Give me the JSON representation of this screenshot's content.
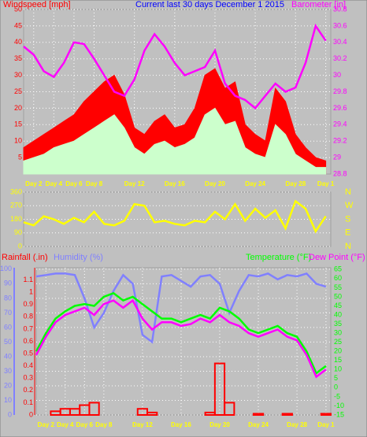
{
  "chart_data": [
    {
      "type": "line",
      "title": "Current last 30 days December 1 2015",
      "y_label": "Windspeed [mph]",
      "x": [
        1,
        2,
        3,
        4,
        5,
        6,
        7,
        8,
        9,
        10,
        11,
        12,
        13,
        14,
        15,
        16,
        17,
        18,
        19,
        20,
        21,
        22,
        23,
        24,
        25,
        26,
        27,
        28,
        29,
        30,
        31
      ],
      "xlim": [
        1,
        31.5
      ],
      "xticks": [
        {
          "value": 2,
          "label": "Day 2"
        },
        {
          "value": 4,
          "label": "Day 4"
        },
        {
          "value": 6,
          "label": "Day 6"
        },
        {
          "value": 8,
          "label": "Day 8"
        },
        {
          "value": 12,
          "label": "Day 12"
        },
        {
          "value": 16,
          "label": "Day 16"
        },
        {
          "value": 20,
          "label": "Day 20"
        },
        {
          "value": 24,
          "label": "Day 24"
        },
        {
          "value": 28,
          "label": "Day 28"
        },
        {
          "value": 31,
          "label": "Day 1"
        }
      ],
      "ylim": [
        0,
        50
      ],
      "yticks": [
        5,
        10,
        15,
        20,
        25,
        30,
        35,
        40,
        45,
        50
      ],
      "y2lim": [
        28.8,
        30.8
      ],
      "y2ticks": [
        28.8,
        29,
        29.2,
        29.4,
        29.6,
        29.8,
        30,
        30.2,
        30.4,
        30.6,
        30.8
      ],
      "grid": true,
      "series": [
        {
          "color": "#ff0000",
          "style": "area",
          "values": [
            8,
            10,
            12,
            14,
            16,
            18,
            22,
            25,
            28,
            30,
            24,
            14,
            12,
            16,
            18,
            14,
            15,
            20,
            30,
            32,
            26,
            28,
            15,
            12,
            10,
            26,
            22,
            12,
            8,
            5,
            4
          ]
        },
        {
          "color": "#ccffcc",
          "style": "area",
          "values": [
            4,
            5,
            6,
            8,
            9,
            10,
            12,
            14,
            16,
            18,
            14,
            8,
            6,
            9,
            10,
            8,
            9,
            11,
            18,
            20,
            15,
            16,
            8,
            6,
            5,
            15,
            12,
            6,
            4,
            2,
            2
          ]
        },
        {
          "name": "Barometer [in]",
          "color": "#ff00ff",
          "axis": "y2",
          "values": [
            30.35,
            30.25,
            30.05,
            29.98,
            30.15,
            30.4,
            30.38,
            30.2,
            30.0,
            29.8,
            29.75,
            29.95,
            30.3,
            30.5,
            30.35,
            30.15,
            30.0,
            30.05,
            30.1,
            30.3,
            29.9,
            29.75,
            29.7,
            29.6,
            29.75,
            29.9,
            29.8,
            29.85,
            30.15,
            30.6,
            30.42
          ]
        }
      ]
    },
    {
      "type": "line",
      "x": [
        1,
        2,
        3,
        4,
        5,
        6,
        7,
        8,
        9,
        10,
        11,
        12,
        13,
        14,
        15,
        16,
        17,
        18,
        19,
        20,
        21,
        22,
        23,
        24,
        25,
        26,
        27,
        28,
        29,
        30,
        31
      ],
      "xlim": [
        1,
        31.5
      ],
      "ylim": [
        0,
        360
      ],
      "yticks": [
        0,
        90,
        180,
        270,
        360
      ],
      "y2lim": [
        0,
        360
      ],
      "y2ticks": [
        {
          "value": 360,
          "label": "N"
        },
        {
          "value": 270,
          "label": "W"
        },
        {
          "value": 180,
          "label": "S"
        },
        {
          "value": 90,
          "label": "E"
        },
        {
          "value": 0,
          "label": "N"
        }
      ],
      "grid": true,
      "series": [
        {
          "color": "#ffff00",
          "values": [
            160,
            140,
            200,
            180,
            150,
            190,
            160,
            230,
            150,
            140,
            170,
            280,
            270,
            160,
            170,
            150,
            140,
            170,
            160,
            230,
            180,
            280,
            170,
            250,
            190,
            240,
            120,
            300,
            250,
            100,
            200
          ]
        }
      ]
    },
    {
      "type": "line",
      "x": [
        1,
        2,
        3,
        4,
        5,
        6,
        7,
        8,
        9,
        10,
        11,
        12,
        13,
        14,
        15,
        16,
        17,
        18,
        19,
        20,
        21,
        22,
        23,
        24,
        25,
        26,
        27,
        28,
        29,
        30,
        31
      ],
      "xlim": [
        1,
        31.5
      ],
      "xticks": [
        {
          "value": 2,
          "label": "Day 2"
        },
        {
          "value": 4,
          "label": "Day 4"
        },
        {
          "value": 6,
          "label": "Day 6"
        },
        {
          "value": 8,
          "label": "Day 8"
        },
        {
          "value": 12,
          "label": "Day 12"
        },
        {
          "value": 16,
          "label": "Day 16"
        },
        {
          "value": 20,
          "label": "Day 20"
        },
        {
          "value": 24,
          "label": "Day 24"
        },
        {
          "value": 28,
          "label": "Day 28"
        },
        {
          "value": 31,
          "label": "Day 1"
        }
      ],
      "ylim": [
        0,
        101
      ],
      "yticks": [
        0,
        10,
        20,
        30,
        40,
        50,
        60,
        70,
        80,
        90,
        100
      ],
      "y2lim": [
        -15,
        66
      ],
      "y2ticks": [
        -15,
        -10,
        -5,
        0,
        5,
        10,
        15,
        20,
        25,
        30,
        35,
        40,
        45,
        50,
        55,
        60,
        65
      ],
      "y3lim": [
        0,
        1.2
      ],
      "y3ticks": [
        0,
        0.1,
        0.2,
        0.3,
        0.4,
        0.5,
        0.6,
        0.7,
        0.8,
        0.9,
        1,
        1.1
      ],
      "grid": true,
      "series": [
        {
          "name": "Humidity (%)",
          "color": "#8080ff",
          "values": [
            95,
            96,
            97,
            97,
            96,
            80,
            60,
            70,
            85,
            96,
            90,
            55,
            50,
            95,
            96,
            92,
            88,
            95,
            96,
            90,
            70,
            85,
            96,
            95,
            97,
            93,
            96,
            95,
            97,
            90,
            88
          ]
        },
        {
          "name": "Temperature (°F)",
          "color": "#00ff00",
          "axis": "y2",
          "values": [
            20,
            30,
            38,
            42,
            45,
            46,
            45,
            50,
            52,
            48,
            50,
            46,
            42,
            38,
            38,
            36,
            38,
            40,
            38,
            44,
            42,
            38,
            32,
            30,
            32,
            34,
            30,
            28,
            20,
            8,
            12
          ]
        },
        {
          "name": "Dew Point (°F)",
          "color": "#ff00ff",
          "axis": "y2",
          "values": [
            18,
            28,
            36,
            40,
            42,
            44,
            40,
            46,
            48,
            44,
            48,
            38,
            32,
            36,
            36,
            34,
            35,
            38,
            36,
            40,
            36,
            34,
            30,
            28,
            30,
            32,
            28,
            26,
            18,
            6,
            10
          ]
        },
        {
          "name": "Rainfall (.in)",
          "color": "#ff0000",
          "axis": "y3",
          "style": "bar",
          "values": [
            0,
            0,
            0.03,
            0.05,
            0.05,
            0.08,
            0.1,
            0,
            0,
            0,
            0,
            0.05,
            0.02,
            0,
            0,
            0,
            0,
            0,
            0.02,
            0.42,
            0.1,
            0,
            0,
            0.01,
            0,
            0,
            0.01,
            0,
            0,
            0,
            0.01
          ]
        }
      ]
    }
  ]
}
